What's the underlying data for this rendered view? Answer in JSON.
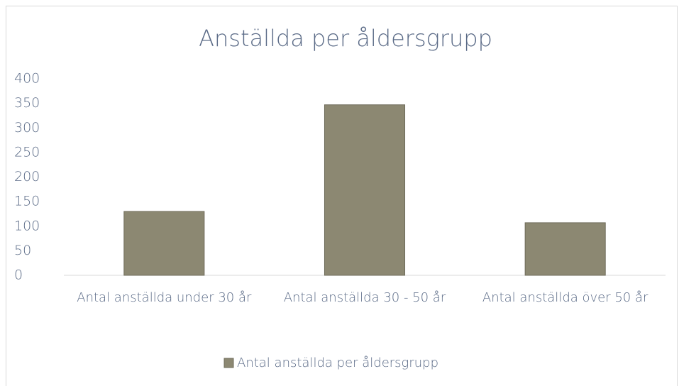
{
  "chart_data": {
    "type": "bar",
    "title": "Anställda per åldersgrupp",
    "categories": [
      "Antal anställda under 30 år",
      "Antal anställda 30 - 50 år",
      "Antal anställda över 50 år"
    ],
    "series": [
      {
        "name": "Antal anställda per åldersgrupp",
        "color": "#8c8872",
        "values": [
          130,
          347,
          107
        ]
      }
    ],
    "ylim": [
      0,
      400
    ],
    "yticks": [
      0,
      50,
      100,
      150,
      200,
      250,
      300,
      350,
      400
    ],
    "grid": false,
    "legend": "bottom"
  }
}
